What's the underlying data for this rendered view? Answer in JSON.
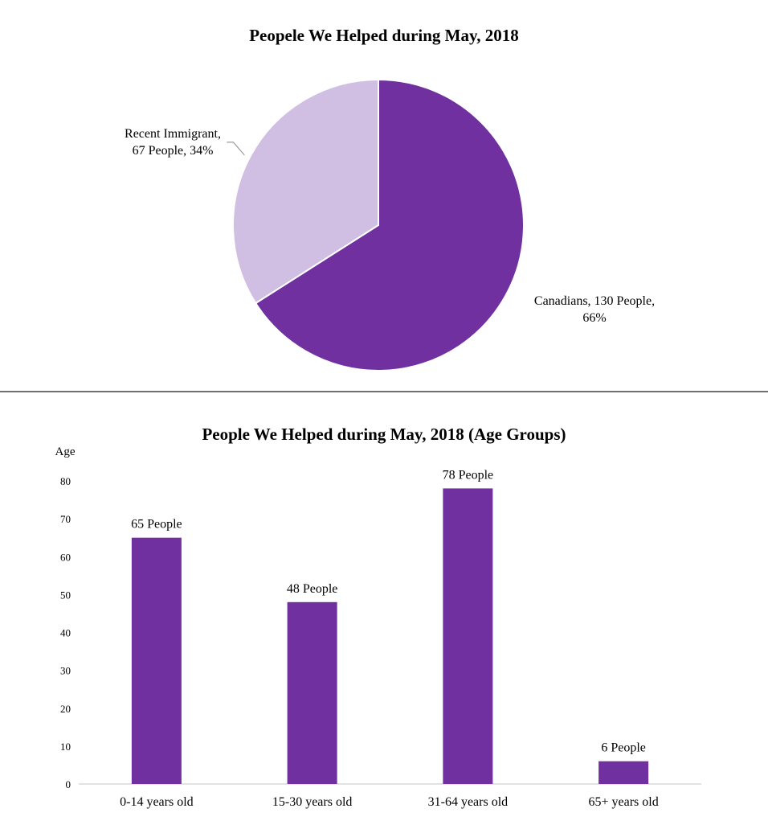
{
  "chart_data": [
    {
      "type": "pie",
      "title": "Peopele We Helped during May, 2018",
      "slices": [
        {
          "label": "Canadians",
          "value": 130,
          "percent": 66,
          "color": "#7030a0",
          "label_line1": "Canadians, 130 People,",
          "label_line2": "66%"
        },
        {
          "label": "Recent Immigrant",
          "value": 67,
          "percent": 34,
          "color": "#d0bee3",
          "label_line1": "Recent Immigrant,",
          "label_line2": "67 People, 34%"
        }
      ],
      "legend": "none"
    },
    {
      "type": "bar",
      "title": "People We Helped during May, 2018 (Age Groups)",
      "ylabel": "Age",
      "xlabel": "",
      "categories": [
        "0-14 years old",
        "15-30 years old",
        "31-64 years old",
        "65+ years old"
      ],
      "values": [
        65,
        48,
        78,
        6
      ],
      "data_labels": [
        "65 People",
        "48 People",
        "78 People",
        "6 People"
      ],
      "yticks": [
        0,
        10,
        20,
        30,
        40,
        50,
        60,
        70,
        80
      ],
      "ylim": [
        0,
        80
      ],
      "bar_color": "#7030a0",
      "grid": false,
      "legend": "none"
    }
  ]
}
